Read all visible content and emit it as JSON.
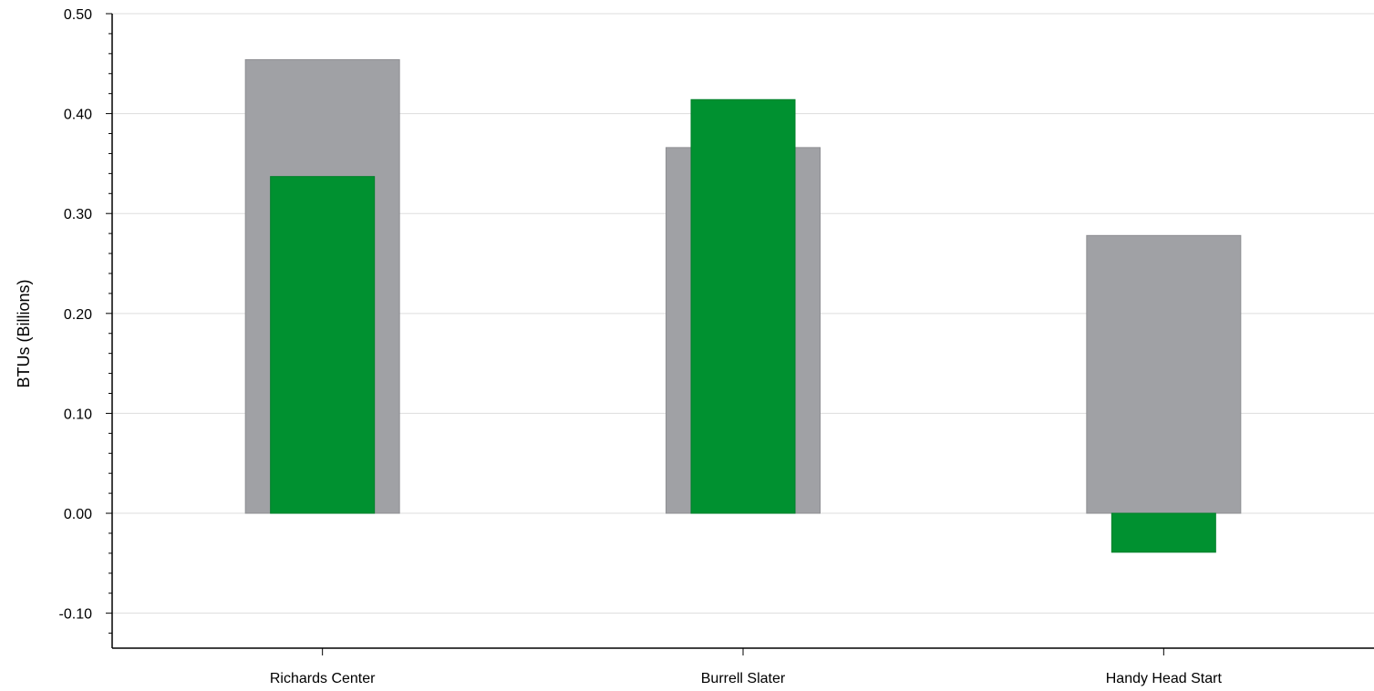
{
  "chart_data": {
    "type": "bar",
    "title": "",
    "xlabel": "",
    "ylabel": "BTUs (Billions)",
    "categories": [
      "Richards Center",
      "Burrell Slater",
      "Handy Head Start"
    ],
    "series": [
      {
        "values": [
          0.454,
          0.366,
          0.278
        ],
        "color": "#a0a1a5"
      },
      {
        "values": [
          0.337,
          0.414,
          -0.039
        ],
        "color": "#009130"
      }
    ],
    "ylim": [
      -0.135,
      0.5
    ],
    "yticks": [
      -0.1,
      0.0,
      0.1,
      0.2,
      0.3,
      0.4,
      0.5
    ],
    "ytick_labels": [
      "-0.10",
      "0.00",
      "0.10",
      "0.20",
      "0.30",
      "0.40",
      "0.50"
    ],
    "grid": true,
    "legend": "none",
    "colors": {
      "gridline": "#dddddd",
      "axis": "#000000"
    }
  }
}
